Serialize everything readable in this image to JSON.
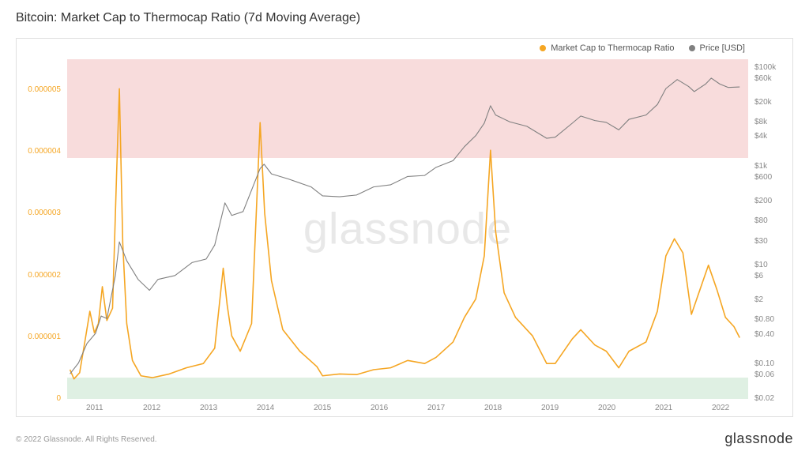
{
  "title": "Bitcoin: Market Cap to Thermocap Ratio (7d Moving Average)",
  "footer": "© 2022 Glassnode. All Rights Reserved.",
  "brand": "glassnode",
  "watermark": "glassnode",
  "legend": {
    "series1": {
      "label": "Market Cap to Thermocap Ratio",
      "color": "#f5a623"
    },
    "series2": {
      "label": "Price [USD]",
      "color": "#808080"
    }
  },
  "chart": {
    "type": "line",
    "background_color": "#ffffff",
    "border_color": "#e0e0e0",
    "grid_color": "#f0f0f0",
    "x_axis": {
      "min": 2010.5,
      "max": 2022.5,
      "ticks": [
        2011,
        2012,
        2013,
        2014,
        2015,
        2016,
        2017,
        2018,
        2019,
        2020,
        2021,
        2022
      ],
      "label_fontsize": 10,
      "label_color": "#888888"
    },
    "y_left": {
      "scale": "linear",
      "min": 0,
      "max": 5.5e-06,
      "ticks": [
        0,
        1e-06,
        2e-06,
        3e-06,
        4e-06,
        5e-06
      ],
      "tick_labels": [
        "0",
        "0.000001",
        "0.000002",
        "0.000003",
        "0.000004",
        "0.000005"
      ],
      "label_color": "#f5a623",
      "label_fontsize": 10
    },
    "y_right": {
      "scale": "log",
      "min": 0.02,
      "max": 150000,
      "ticks": [
        0.02,
        0.06,
        0.1,
        0.4,
        0.8,
        2,
        6,
        10,
        30,
        80,
        200,
        600,
        1000,
        4000,
        8000,
        20000,
        60000,
        100000
      ],
      "tick_labels": [
        "$0.02",
        "$0.06",
        "$0.10",
        "$0.40",
        "$0.80",
        "$2",
        "$6",
        "$10",
        "$30",
        "$80",
        "$200",
        "$600",
        "$1k",
        "$4k",
        "$8k",
        "$20k",
        "$60k",
        "$100k"
      ],
      "label_color": "#888888",
      "label_fontsize": 10
    },
    "bands": [
      {
        "axis": "left",
        "from": 3.9e-06,
        "to": 5.5e-06,
        "color": "#f8dcdc"
      },
      {
        "axis": "left",
        "from": 0,
        "to": 3.5e-07,
        "color": "#dff0e3"
      }
    ],
    "series": [
      {
        "name": "ratio",
        "axis": "left",
        "color": "#f5a623",
        "line_width": 1.6,
        "points": [
          [
            2010.55,
            4.5e-07
          ],
          [
            2010.62,
            3e-07
          ],
          [
            2010.72,
            4e-07
          ],
          [
            2010.82,
            9.5e-07
          ],
          [
            2010.9,
            1.4e-06
          ],
          [
            2010.98,
            1.05e-06
          ],
          [
            2011.05,
            1.2e-06
          ],
          [
            2011.12,
            1.8e-06
          ],
          [
            2011.2,
            1.25e-06
          ],
          [
            2011.3,
            1.45e-06
          ],
          [
            2011.37,
            3.6e-06
          ],
          [
            2011.42,
            5.02e-06
          ],
          [
            2011.48,
            2.5e-06
          ],
          [
            2011.55,
            1.2e-06
          ],
          [
            2011.65,
            6e-07
          ],
          [
            2011.8,
            3.5e-07
          ],
          [
            2012.0,
            3.2e-07
          ],
          [
            2012.3,
            3.8e-07
          ],
          [
            2012.6,
            4.8e-07
          ],
          [
            2012.9,
            5.5e-07
          ],
          [
            2013.1,
            8e-07
          ],
          [
            2013.25,
            2.1e-06
          ],
          [
            2013.32,
            1.5e-06
          ],
          [
            2013.4,
            1e-06
          ],
          [
            2013.55,
            7.5e-07
          ],
          [
            2013.75,
            1.2e-06
          ],
          [
            2013.9,
            4.47e-06
          ],
          [
            2013.98,
            3e-06
          ],
          [
            2014.1,
            1.9e-06
          ],
          [
            2014.3,
            1.1e-06
          ],
          [
            2014.6,
            7.5e-07
          ],
          [
            2014.9,
            5e-07
          ],
          [
            2015.0,
            3.5e-07
          ],
          [
            2015.3,
            3.8e-07
          ],
          [
            2015.6,
            3.7e-07
          ],
          [
            2015.9,
            4.5e-07
          ],
          [
            2016.2,
            4.8e-07
          ],
          [
            2016.5,
            6e-07
          ],
          [
            2016.8,
            5.5e-07
          ],
          [
            2017.0,
            6.5e-07
          ],
          [
            2017.3,
            9e-07
          ],
          [
            2017.5,
            1.3e-06
          ],
          [
            2017.7,
            1.6e-06
          ],
          [
            2017.85,
            2.3e-06
          ],
          [
            2017.96,
            4.02e-06
          ],
          [
            2018.05,
            2.7e-06
          ],
          [
            2018.2,
            1.7e-06
          ],
          [
            2018.4,
            1.3e-06
          ],
          [
            2018.7,
            1e-06
          ],
          [
            2018.95,
            5.5e-07
          ],
          [
            2019.1,
            5.5e-07
          ],
          [
            2019.4,
            9.5e-07
          ],
          [
            2019.55,
            1.1e-06
          ],
          [
            2019.8,
            8.5e-07
          ],
          [
            2020.0,
            7.5e-07
          ],
          [
            2020.22,
            4.8e-07
          ],
          [
            2020.4,
            7.5e-07
          ],
          [
            2020.7,
            9e-07
          ],
          [
            2020.9,
            1.4e-06
          ],
          [
            2021.05,
            2.3e-06
          ],
          [
            2021.2,
            2.58e-06
          ],
          [
            2021.35,
            2.35e-06
          ],
          [
            2021.5,
            1.35e-06
          ],
          [
            2021.65,
            1.75e-06
          ],
          [
            2021.8,
            2.15e-06
          ],
          [
            2021.95,
            1.75e-06
          ],
          [
            2022.1,
            1.3e-06
          ],
          [
            2022.25,
            1.15e-06
          ],
          [
            2022.35,
            9.7e-07
          ]
        ]
      },
      {
        "name": "price",
        "axis": "right",
        "color": "#808080",
        "line_width": 1.1,
        "points": [
          [
            2010.55,
            0.06
          ],
          [
            2010.7,
            0.1
          ],
          [
            2010.85,
            0.25
          ],
          [
            2011.0,
            0.4
          ],
          [
            2011.1,
            0.9
          ],
          [
            2011.2,
            0.8
          ],
          [
            2011.35,
            6
          ],
          [
            2011.42,
            29
          ],
          [
            2011.55,
            12
          ],
          [
            2011.75,
            5
          ],
          [
            2011.95,
            3
          ],
          [
            2012.1,
            5
          ],
          [
            2012.4,
            6
          ],
          [
            2012.7,
            11
          ],
          [
            2012.95,
            13
          ],
          [
            2013.1,
            25
          ],
          [
            2013.28,
            180
          ],
          [
            2013.4,
            100
          ],
          [
            2013.6,
            120
          ],
          [
            2013.9,
            900
          ],
          [
            2013.97,
            1100
          ],
          [
            2014.1,
            700
          ],
          [
            2014.4,
            550
          ],
          [
            2014.8,
            380
          ],
          [
            2015.0,
            250
          ],
          [
            2015.3,
            240
          ],
          [
            2015.6,
            260
          ],
          [
            2015.9,
            380
          ],
          [
            2016.2,
            420
          ],
          [
            2016.5,
            620
          ],
          [
            2016.8,
            650
          ],
          [
            2017.0,
            950
          ],
          [
            2017.3,
            1300
          ],
          [
            2017.5,
            2500
          ],
          [
            2017.7,
            4200
          ],
          [
            2017.85,
            7500
          ],
          [
            2017.96,
            17000
          ],
          [
            2018.05,
            11000
          ],
          [
            2018.3,
            8000
          ],
          [
            2018.6,
            6500
          ],
          [
            2018.95,
            3700
          ],
          [
            2019.1,
            3900
          ],
          [
            2019.4,
            7500
          ],
          [
            2019.55,
            10500
          ],
          [
            2019.8,
            8500
          ],
          [
            2020.0,
            7800
          ],
          [
            2020.22,
            5500
          ],
          [
            2020.4,
            9000
          ],
          [
            2020.7,
            11000
          ],
          [
            2020.9,
            18000
          ],
          [
            2021.05,
            38000
          ],
          [
            2021.25,
            58000
          ],
          [
            2021.45,
            42000
          ],
          [
            2021.55,
            33000
          ],
          [
            2021.75,
            47000
          ],
          [
            2021.85,
            62000
          ],
          [
            2022.0,
            47000
          ],
          [
            2022.15,
            40000
          ],
          [
            2022.35,
            41000
          ]
        ]
      }
    ]
  }
}
